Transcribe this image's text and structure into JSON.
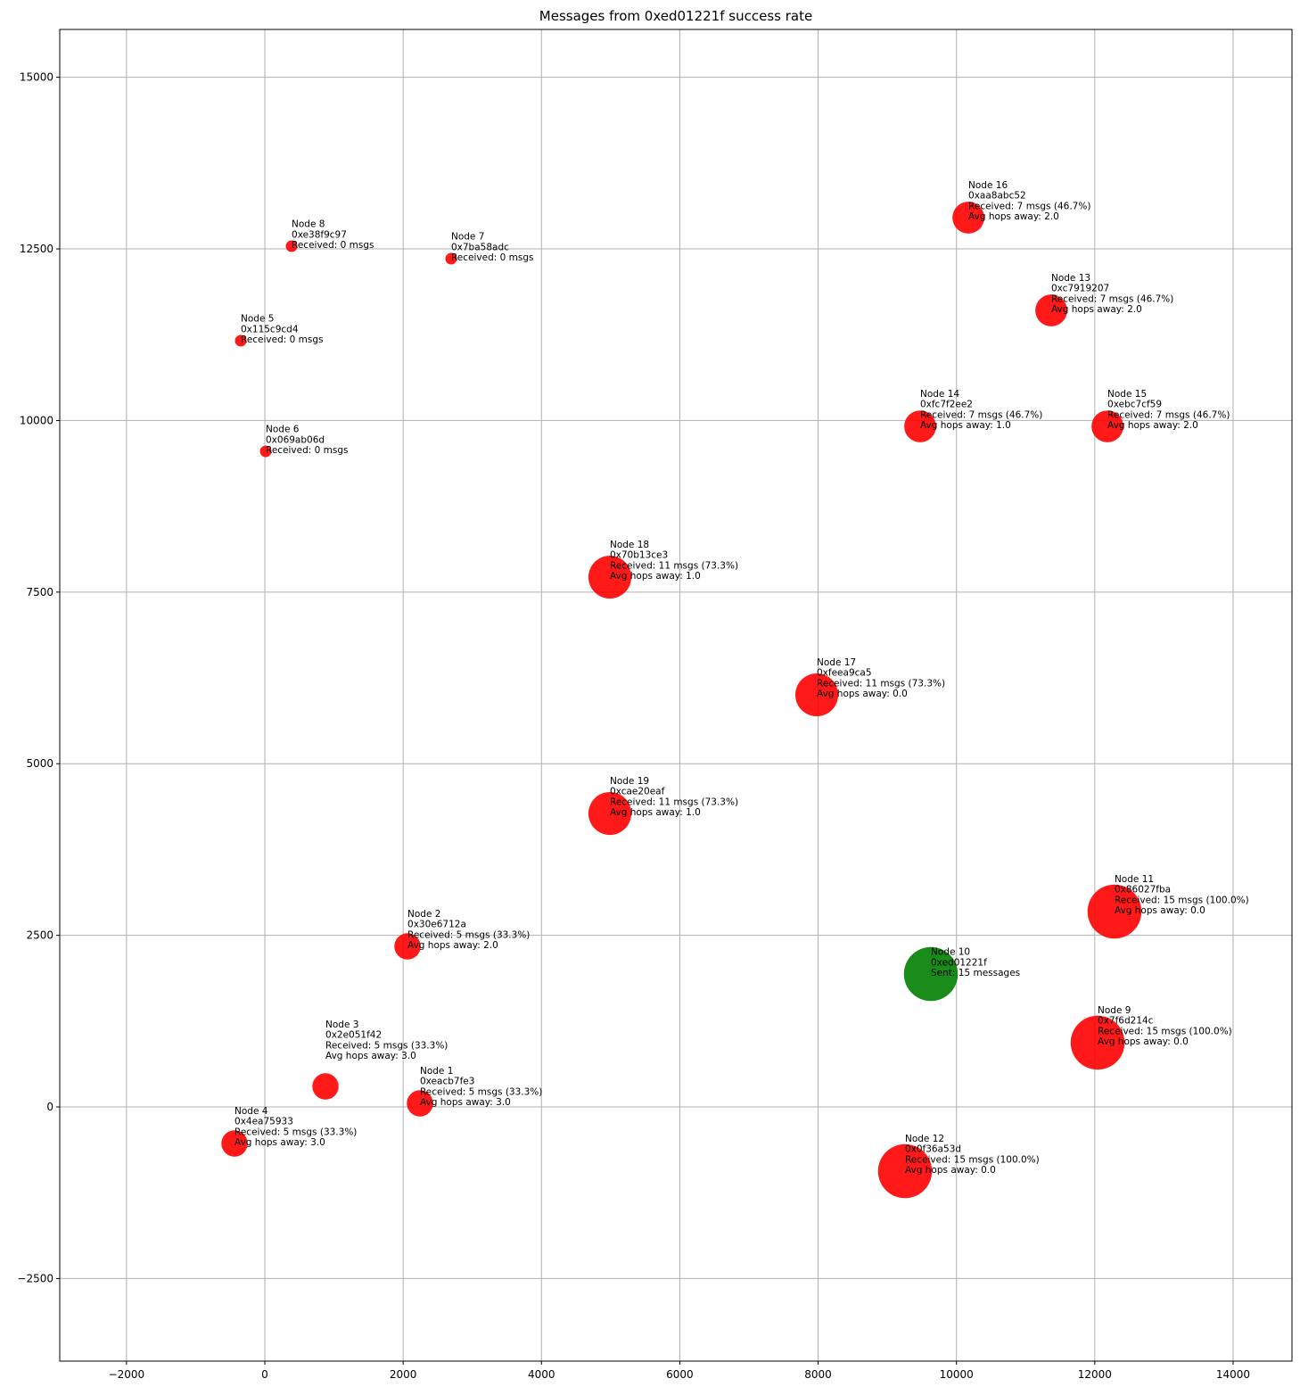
{
  "chart_data": {
    "type": "scatter",
    "title": "Messages from 0xed01221f success rate",
    "xlabel": "",
    "ylabel": "",
    "xlim": [
      -2965,
      14851
    ],
    "ylim": [
      -3703,
      15697
    ],
    "xticks": [
      -2000,
      0,
      2000,
      4000,
      6000,
      8000,
      10000,
      12000,
      14000
    ],
    "yticks": [
      -2500,
      0,
      2500,
      5000,
      7500,
      10000,
      12500,
      15000
    ],
    "grid": true,
    "colors": {
      "receiver": "#ff0000",
      "sender": "#008000"
    },
    "points": [
      {
        "x": 2243,
        "y": 52,
        "msgs": 5,
        "role": "receiver",
        "lines": [
          "Node 1",
          "0xeacb7fe3",
          "Received: 5 msgs (33.3%)",
          "Avg hops away: 3.0"
        ]
      },
      {
        "x": 2063,
        "y": 2339,
        "msgs": 5,
        "role": "receiver",
        "lines": [
          "Node 2",
          "0x30e6712a",
          "Received: 5 msgs (33.3%)",
          "Avg hops away: 2.0"
        ]
      },
      {
        "x": 877,
        "y": 299,
        "msgs": 5,
        "role": "receiver",
        "lines": [
          "Node 3",
          "0x2e051f42",
          "Received: 5 msgs (33.3%)",
          "Avg hops away: 3.0"
        ]
      },
      {
        "x": -438,
        "y": -533,
        "msgs": 5,
        "role": "receiver",
        "lines": [
          "Node 4",
          "0x4ea75933",
          "Received: 5 msgs (33.3%)",
          "Avg hops away: 3.0"
        ]
      },
      {
        "x": -348,
        "y": 11162,
        "msgs": 0,
        "role": "receiver",
        "lines": [
          "Node 5",
          "0x115c9cd4",
          "Received: 0 msgs"
        ]
      },
      {
        "x": 13,
        "y": 9550,
        "msgs": 0,
        "role": "receiver",
        "lines": [
          "Node 6",
          "0x069ab06d",
          "Received: 0 msgs"
        ]
      },
      {
        "x": 2694,
        "y": 12357,
        "msgs": 0,
        "role": "receiver",
        "lines": [
          "Node 7",
          "0x7ba58adc",
          "Received: 0 msgs"
        ]
      },
      {
        "x": 387,
        "y": 12539,
        "msgs": 0,
        "role": "receiver",
        "lines": [
          "Node 8",
          "0xe38f9c97",
          "Received: 0 msgs"
        ]
      },
      {
        "x": 12041,
        "y": 936,
        "msgs": 15,
        "role": "receiver",
        "lines": [
          "Node 9",
          "0x7f6d214c",
          "Received: 15 msgs (100.0%)",
          "Avg hops away: 0.0"
        ]
      },
      {
        "x": 9630,
        "y": 1936,
        "msgs": 15,
        "role": "sender",
        "lines": [
          "Node 10",
          "0xed01221f",
          "Sent: 15 messages"
        ]
      },
      {
        "x": 12285,
        "y": 2846,
        "msgs": 15,
        "role": "receiver",
        "lines": [
          "Node 11",
          "0x86027fba",
          "Received: 15 msgs (100.0%)",
          "Avg hops away: 0.0"
        ]
      },
      {
        "x": 9256,
        "y": -936,
        "msgs": 15,
        "role": "receiver",
        "lines": [
          "Node 12",
          "0x0f36a53d",
          "Received: 15 msgs (100.0%)",
          "Avg hops away: 0.0"
        ]
      },
      {
        "x": 11370,
        "y": 11604,
        "msgs": 7,
        "role": "receiver",
        "lines": [
          "Node 13",
          "0xc7919207",
          "Received: 7 msgs (46.7%)",
          "Avg hops away: 2.0"
        ]
      },
      {
        "x": 9475,
        "y": 9914,
        "msgs": 7,
        "role": "receiver",
        "lines": [
          "Node 14",
          "0xfc7f2ee2",
          "Received: 7 msgs (46.7%)",
          "Avg hops away: 1.0"
        ]
      },
      {
        "x": 12183,
        "y": 9914,
        "msgs": 7,
        "role": "receiver",
        "lines": [
          "Node 15",
          "0xebc7cf59",
          "Received: 7 msgs (46.7%)",
          "Avg hops away: 2.0"
        ]
      },
      {
        "x": 10172,
        "y": 12955,
        "msgs": 7,
        "role": "receiver",
        "lines": [
          "Node 16",
          "0xaa8abc52",
          "Received: 7 msgs (46.7%)",
          "Avg hops away: 2.0"
        ]
      },
      {
        "x": 7980,
        "y": 6003,
        "msgs": 11,
        "role": "receiver",
        "lines": [
          "Node 17",
          "0xfeea9ca5",
          "Received: 11 msgs (73.3%)",
          "Avg hops away: 0.0"
        ]
      },
      {
        "x": 4989,
        "y": 7718,
        "msgs": 11,
        "role": "receiver",
        "lines": [
          "Node 18",
          "0x70b13ce3",
          "Received: 11 msgs (73.3%)",
          "Avg hops away: 1.0"
        ]
      },
      {
        "x": 4989,
        "y": 4275,
        "msgs": 11,
        "role": "receiver",
        "lines": [
          "Node 19",
          "0xcae20eaf",
          "Received: 11 msgs (73.3%)",
          "Avg hops away: 1.0"
        ]
      }
    ]
  }
}
